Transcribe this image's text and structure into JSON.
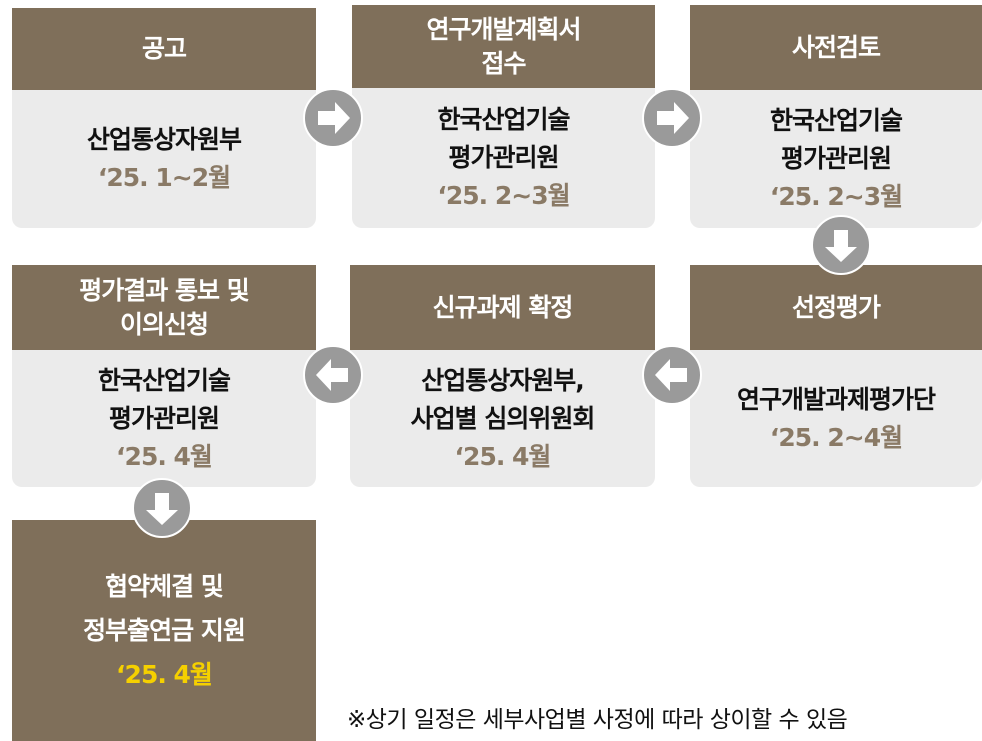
{
  "steps": [
    {
      "title": [
        "공고"
      ],
      "org": [
        "산업통상자원부"
      ],
      "date": "‘25. 1~2월"
    },
    {
      "title": [
        "연구개발계획서",
        "접수"
      ],
      "org": [
        "한국산업기술",
        "평가관리원"
      ],
      "date": "‘25. 2~3월"
    },
    {
      "title": [
        "사전검토"
      ],
      "org": [
        "한국산업기술",
        "평가관리원"
      ],
      "date": "‘25. 2~3월"
    },
    {
      "title": [
        "선정평가"
      ],
      "org": [
        "연구개발과제평가단"
      ],
      "date": "‘25. 2~4월"
    },
    {
      "title": [
        "신규과제 확정"
      ],
      "org": [
        "산업통상자원부,",
        "사업별 심의위원회"
      ],
      "date": "‘25. 4월"
    },
    {
      "title": [
        "평가결과 통보 및",
        "이의신청"
      ],
      "org": [
        "한국산업기술",
        "평가관리원"
      ],
      "date": "‘25. 4월"
    },
    {
      "title": [
        "협약체결 및",
        "정부출연금 지원"
      ],
      "date": "‘25. 4월"
    }
  ],
  "note": "※상기 일정은 세부사업별 사정에 따라 상이할 수 있음"
}
